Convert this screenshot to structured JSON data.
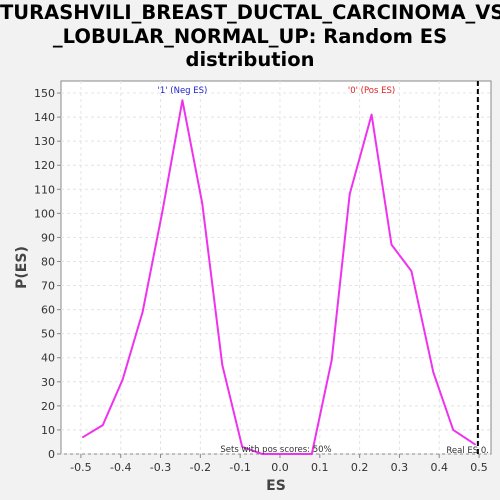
{
  "chart_data": {
    "type": "line",
    "title_lines": [
      "TURASHVILI_BREAST_DUCTAL_CARCINOMA_VS",
      "_LOBULAR_NORMAL_UP: Random ES",
      "distribution"
    ],
    "xlabel": "ES",
    "ylabel": "P(ES)",
    "xlim": [
      -0.55,
      0.53
    ],
    "ylim": [
      0,
      155
    ],
    "x_ticks": [
      -0.5,
      -0.4,
      -0.3,
      -0.2,
      -0.1,
      0.0,
      0.1,
      0.2,
      0.3,
      0.4,
      0.5
    ],
    "x_tick_labels": [
      "-0.5",
      "-0.4",
      "-0.3",
      "-0.2",
      "-0.1",
      "0.0",
      "0.1",
      "0.2",
      "0.3",
      "0.4",
      "0.5"
    ],
    "y_ticks": [
      0,
      10,
      20,
      30,
      40,
      50,
      60,
      70,
      80,
      90,
      100,
      110,
      120,
      130,
      140,
      150
    ],
    "y_tick_labels": [
      "0",
      "10",
      "20",
      "30",
      "40",
      "50",
      "60",
      "70",
      "80",
      "90",
      "100",
      "110",
      "120",
      "130",
      "140",
      "150"
    ],
    "grid": true,
    "series": [
      {
        "color": "#ee33ee",
        "x": [
          -0.495,
          -0.445,
          -0.395,
          -0.345,
          -0.295,
          -0.245,
          -0.195,
          -0.145,
          -0.095,
          -0.045,
          0.005,
          0.055,
          0.08,
          0.13,
          0.175,
          0.23,
          0.28,
          0.33,
          0.385,
          0.435,
          0.49
        ],
        "y": [
          7,
          12,
          31,
          59,
          101,
          147,
          104,
          37,
          3,
          0,
          0,
          0,
          0,
          39,
          108,
          141,
          87,
          76,
          34,
          10,
          4
        ]
      }
    ],
    "annotations": {
      "neg_label": {
        "text": "'1' (Neg ES)",
        "x": -0.245,
        "color": "#2222cc"
      },
      "pos_label": {
        "text": "'0' (Pos ES)",
        "x": 0.23,
        "color": "#dd2222"
      },
      "pos_scores": {
        "text": "Sets with pos scores: 50%"
      },
      "real_es": {
        "text": "Real ES 0.",
        "x": 0.497
      }
    }
  }
}
